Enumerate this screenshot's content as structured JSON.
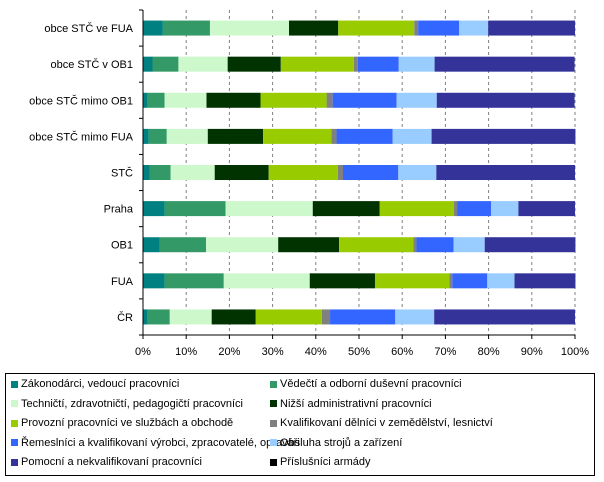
{
  "chart_data": {
    "type": "bar",
    "orientation": "horizontal",
    "stacked": "percent",
    "title": "",
    "xlabel": "",
    "ylabel": "",
    "xlim": [
      0,
      100
    ],
    "grid": true,
    "legend_position": "bottom",
    "x_ticks": [
      "0%",
      "10%",
      "20%",
      "30%",
      "40%",
      "50%",
      "60%",
      "70%",
      "80%",
      "90%",
      "100%"
    ],
    "categories": [
      "obce STČ ve FUA",
      "obce STČ v OB1",
      "obce STČ mimo OB1",
      "obce STČ mimo FUA",
      "STČ",
      "Praha",
      "OB1",
      "FUA",
      "ČR"
    ],
    "series": [
      {
        "name": "Zákonodárci, vedoucí pracovníci",
        "color": "#008080",
        "values": [
          4.6,
          2.2,
          1.1,
          1.3,
          1.5,
          5.0,
          3.9,
          5.0,
          1.1
        ]
      },
      {
        "name": "Vědečtí a odborní duševní pracovníci",
        "color": "#339966",
        "values": [
          10.9,
          6.0,
          3.9,
          4.2,
          4.9,
          14.1,
          10.7,
          13.7,
          5.1
        ]
      },
      {
        "name": "Techničtí, zdravotničtí, pedagogičtí pracovníci",
        "color": "#CCF8CC",
        "values": [
          18.3,
          11.4,
          9.7,
          9.5,
          10.2,
          20.2,
          16.7,
          19.9,
          9.7
        ]
      },
      {
        "name": "Nižší administrativní pracovníci",
        "color": "#003300",
        "values": [
          11.4,
          12.3,
          12.5,
          12.8,
          12.5,
          15.5,
          14.1,
          15.1,
          10.2
        ]
      },
      {
        "name": "Provozní pracovníci ve službách a obchodě",
        "color": "#99CC00",
        "values": [
          17.6,
          16.9,
          15.3,
          15.8,
          16.0,
          17.2,
          17.2,
          17.2,
          15.3
        ]
      },
      {
        "name": "Kvalifikovaní dělníci v zemědělství, lesnictví",
        "color": "#808080",
        "values": [
          0.9,
          0.9,
          1.4,
          1.2,
          1.2,
          0.7,
          0.7,
          0.7,
          1.9
        ]
      },
      {
        "name": "Řemeslníci a kvalifikovaní výrobci, zpracovatelé, opraváři",
        "color": "#3366FF",
        "values": [
          9.5,
          9.5,
          14.8,
          13.0,
          12.8,
          7.9,
          8.6,
          8.1,
          15.1
        ]
      },
      {
        "name": "Obsluha strojů a zařízení",
        "color": "#99CCFF",
        "values": [
          6.7,
          8.3,
          9.3,
          9.0,
          8.8,
          6.3,
          7.2,
          6.3,
          9.0
        ]
      },
      {
        "name": "Pomocní a nekvalifikovaní pracovníci",
        "color": "#333399",
        "values": [
          20.1,
          32.4,
          31.9,
          33.3,
          32.1,
          13.1,
          21.0,
          14.1,
          32.6
        ]
      },
      {
        "name": "Příslušníci armády",
        "color": "#000000",
        "values": [
          0,
          0,
          0,
          0,
          0,
          0,
          0,
          0,
          0
        ]
      }
    ]
  }
}
